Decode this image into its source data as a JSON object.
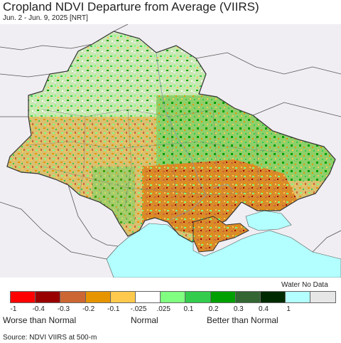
{
  "header": {
    "title": "Cropland NDVI Departure from Average (VIIRS)",
    "subtitle": "Jun. 2 - Jun. 9, 2025 [NRT]"
  },
  "legend": {
    "water_no_data_label": "Water No Data",
    "swatches": [
      {
        "name": "-1 to -0.4",
        "color": "#ff0000"
      },
      {
        "name": "-0.4 to -0.3",
        "color": "#990000"
      },
      {
        "name": "-0.3 to -0.2",
        "color": "#cc6633"
      },
      {
        "name": "-0.2 to -0.1",
        "color": "#e69500"
      },
      {
        "name": "-0.1 to -0.025",
        "color": "#ffc94d"
      },
      {
        "name": "-0.025 to 0.025",
        "color": "#ffffff"
      },
      {
        "name": "0.025 to 0.1",
        "color": "#80ff80"
      },
      {
        "name": "0.1 to 0.2",
        "color": "#33cc4d"
      },
      {
        "name": "0.2 to 0.3",
        "color": "#00a000"
      },
      {
        "name": "0.3 to 0.4",
        "color": "#336633"
      },
      {
        "name": "0.4 to 1",
        "color": "#002b00"
      },
      {
        "name": "water",
        "color": "#b3ffff"
      },
      {
        "name": "no data",
        "color": "#e6e6e6"
      }
    ],
    "ticks": [
      "-1",
      "-0.4",
      "-0.3",
      "-0.2",
      "-0.1",
      "-.025",
      ".025",
      "0.1",
      "0.2",
      "0.3",
      "0.4",
      "1"
    ],
    "categories": {
      "worse": "Worse than Normal",
      "normal": "Normal",
      "better": "Better than Normal"
    }
  },
  "footer": {
    "source": "Source: NDVI VIIRS at 500-m"
  },
  "colors": {
    "background_land": "#f0eef2",
    "water": "#b3ffff",
    "border": "#555555"
  }
}
